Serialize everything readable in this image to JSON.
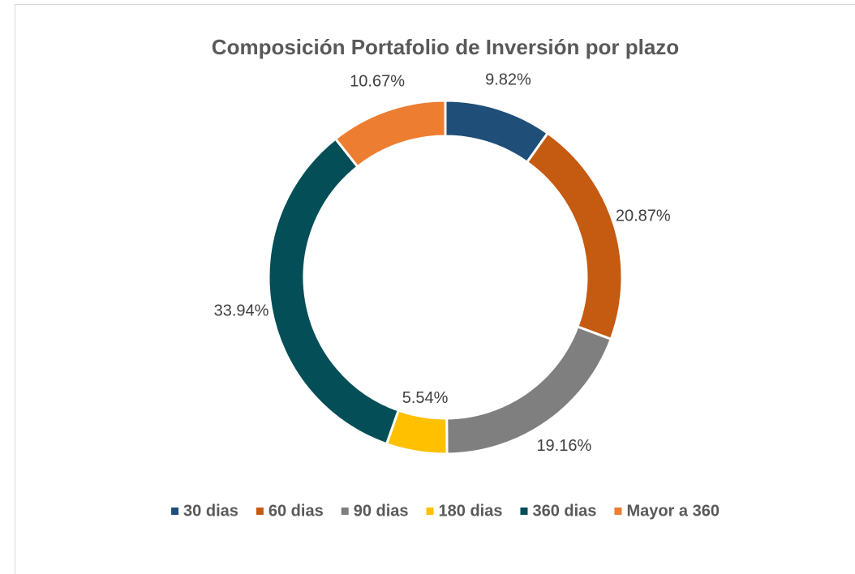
{
  "chart_data": {
    "type": "donut",
    "title": "Composición Portafolio de Inversión por plazo",
    "categories": [
      "30 dias",
      "60 dias",
      "90 dias",
      "180 dias",
      "360 dias",
      "Mayor a 360"
    ],
    "values": [
      9.82,
      20.87,
      19.16,
      5.54,
      33.94,
      10.67
    ],
    "value_labels": [
      "9.82%",
      "20.87%",
      "19.16%",
      "5.54%",
      "33.94%",
      "10.67%"
    ],
    "colors": [
      "#1f4e79",
      "#c55a11",
      "#7f7f7f",
      "#ffc000",
      "#034e57",
      "#ed7d31"
    ],
    "legend": "bottom"
  }
}
